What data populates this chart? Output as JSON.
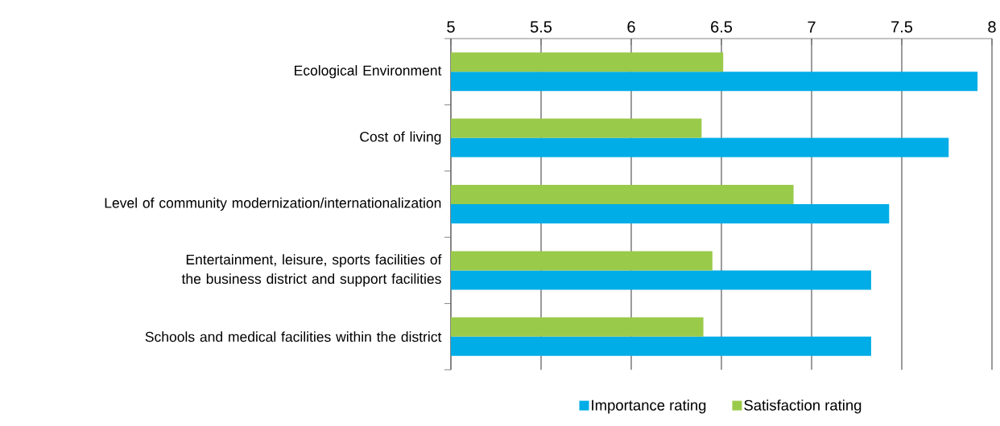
{
  "chart_data": {
    "type": "bar",
    "orientation": "horizontal",
    "categories": [
      "Ecological Environment",
      "Cost of living",
      "Level of community modernization/internationalization",
      "Entertainment, leisure, sports facilities of the business district and support facilities",
      "Schools and medical facilities within the district"
    ],
    "series": [
      {
        "name": "Importance rating",
        "color": "#00ade6",
        "values": [
          7.92,
          7.76,
          7.43,
          7.33,
          7.33
        ]
      },
      {
        "name": "Satisfaction rating",
        "color": "#9aca4a",
        "values": [
          6.51,
          6.39,
          6.9,
          6.45,
          6.4
        ]
      }
    ],
    "xlim": [
      5,
      8
    ],
    "xticks": [
      5,
      5.5,
      6,
      6.5,
      7,
      7.5,
      8
    ],
    "grid": "x",
    "legend": "bottom"
  }
}
